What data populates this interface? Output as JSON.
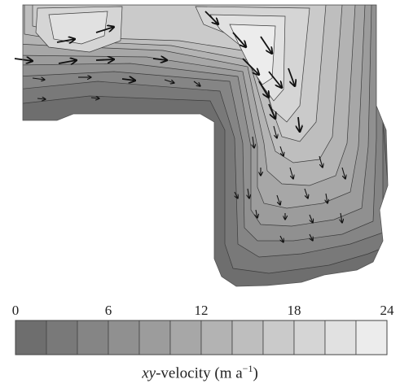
{
  "chart_data": {
    "type": "heatmap",
    "title": "",
    "colorbar": {
      "min": 0,
      "max": 24,
      "levels": 12,
      "step": 2,
      "ticks": [
        0,
        6,
        12,
        18,
        24
      ],
      "tick_labels": [
        "0",
        "6",
        "12",
        "18",
        "24"
      ],
      "label_prefix": "xy",
      "label_text": "-velocity (m a",
      "label_superscript": "−1",
      "label_suffix": ")",
      "orientation": "horizontal",
      "placement": "bottom"
    },
    "colors": {
      "low": "#6e6e6e",
      "high": "#ececec",
      "contour_line": "#3c3c3c",
      "arrow": "#111111",
      "background": "#ffffff"
    },
    "overlay": "velocity-vectors",
    "contours": "filled",
    "region_shape": "L-shaped glacier outline"
  }
}
